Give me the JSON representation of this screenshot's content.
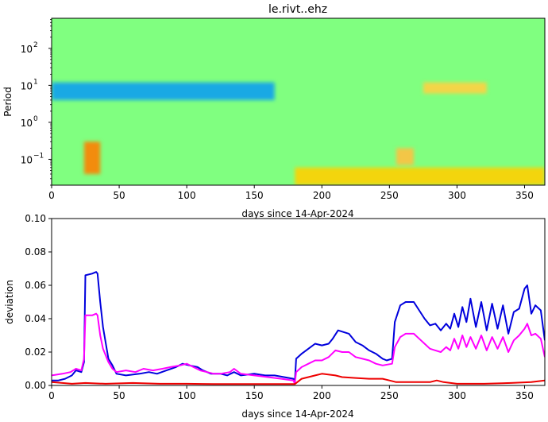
{
  "chart_data": [
    {
      "type": "heatmap",
      "title": "le.rivt..ehz",
      "xlabel": "days since 14-Apr-2024",
      "ylabel": "Period",
      "xlim": [
        0,
        365
      ],
      "xticks": [
        0,
        50,
        100,
        150,
        200,
        250,
        300,
        350
      ],
      "ylim": [
        0.02,
        650
      ],
      "yscale": "log",
      "yticks": [
        0.1,
        1,
        10,
        100
      ],
      "ytick_labels": [
        "10",
        "10",
        "10",
        "10"
      ],
      "ytick_exponents": [
        "−1",
        "0",
        "1",
        "2"
      ],
      "colormap": "jet",
      "background_color": "#80ff80",
      "features": [
        {
          "name": "microseism band",
          "x_range": [
            0,
            165
          ],
          "period_range": [
            4,
            12
          ],
          "color": "#0aa0f0"
        },
        {
          "name": "early short-period high",
          "x_range": [
            24,
            36
          ],
          "period_range": [
            0.04,
            0.3
          ],
          "color": "#ff8000"
        },
        {
          "name": "mid short-period",
          "x_range": [
            255,
            268
          ],
          "period_range": [
            0.07,
            0.2
          ],
          "color": "#ffc040"
        },
        {
          "name": "late short-period elevated",
          "x_range": [
            180,
            365
          ],
          "period_range": [
            0.02,
            0.06
          ],
          "color": "#ffd000"
        },
        {
          "name": "late period-10 band",
          "x_range": [
            275,
            322
          ],
          "period_range": [
            6,
            12
          ],
          "color": "#ffd040"
        }
      ]
    },
    {
      "type": "line",
      "title": "",
      "xlabel": "days since 14-Apr-2024",
      "ylabel": "deviation",
      "xlim": [
        0,
        365
      ],
      "ylim": [
        0,
        0.1
      ],
      "xticks": [
        0,
        50,
        100,
        150,
        200,
        250,
        300,
        350
      ],
      "yticks": [
        0.0,
        0.02,
        0.04,
        0.06,
        0.08,
        0.1
      ],
      "ytick_labels": [
        "0.00",
        "0.02",
        "0.04",
        "0.06",
        "0.08",
        "0.10"
      ],
      "series": [
        {
          "color": "#0000dd",
          "points": [
            [
              0,
              0.003
            ],
            [
              5,
              0.003
            ],
            [
              10,
              0.004
            ],
            [
              15,
              0.006
            ],
            [
              18,
              0.009
            ],
            [
              22,
              0.008
            ],
            [
              24,
              0.014
            ],
            [
              25,
              0.066
            ],
            [
              30,
              0.067
            ],
            [
              33,
              0.068
            ],
            [
              34,
              0.067
            ],
            [
              36,
              0.05
            ],
            [
              38,
              0.035
            ],
            [
              42,
              0.016
            ],
            [
              45,
              0.012
            ],
            [
              48,
              0.007
            ],
            [
              55,
              0.006
            ],
            [
              65,
              0.007
            ],
            [
              72,
              0.008
            ],
            [
              78,
              0.007
            ],
            [
              85,
              0.009
            ],
            [
              92,
              0.011
            ],
            [
              97,
              0.013
            ],
            [
              102,
              0.012
            ],
            [
              108,
              0.011
            ],
            [
              112,
              0.009
            ],
            [
              118,
              0.007
            ],
            [
              125,
              0.007
            ],
            [
              130,
              0.006
            ],
            [
              135,
              0.008
            ],
            [
              140,
              0.006
            ],
            [
              150,
              0.007
            ],
            [
              158,
              0.006
            ],
            [
              165,
              0.006
            ],
            [
              172,
              0.005
            ],
            [
              179,
              0.004
            ],
            [
              180,
              0.002
            ],
            [
              181,
              0.016
            ],
            [
              185,
              0.019
            ],
            [
              190,
              0.022
            ],
            [
              195,
              0.025
            ],
            [
              200,
              0.024
            ],
            [
              205,
              0.025
            ],
            [
              208,
              0.028
            ],
            [
              212,
              0.033
            ],
            [
              216,
              0.032
            ],
            [
              220,
              0.031
            ],
            [
              225,
              0.026
            ],
            [
              230,
              0.024
            ],
            [
              235,
              0.021
            ],
            [
              240,
              0.019
            ],
            [
              245,
              0.016
            ],
            [
              248,
              0.015
            ],
            [
              252,
              0.016
            ],
            [
              254,
              0.038
            ],
            [
              258,
              0.048
            ],
            [
              262,
              0.05
            ],
            [
              268,
              0.05
            ],
            [
              272,
              0.045
            ],
            [
              276,
              0.04
            ],
            [
              280,
              0.036
            ],
            [
              284,
              0.037
            ],
            [
              288,
              0.033
            ],
            [
              292,
              0.037
            ],
            [
              295,
              0.034
            ],
            [
              298,
              0.043
            ],
            [
              301,
              0.035
            ],
            [
              304,
              0.047
            ],
            [
              307,
              0.038
            ],
            [
              310,
              0.052
            ],
            [
              314,
              0.035
            ],
            [
              318,
              0.05
            ],
            [
              322,
              0.033
            ],
            [
              326,
              0.049
            ],
            [
              330,
              0.034
            ],
            [
              334,
              0.048
            ],
            [
              338,
              0.031
            ],
            [
              342,
              0.044
            ],
            [
              346,
              0.046
            ],
            [
              350,
              0.058
            ],
            [
              352,
              0.06
            ],
            [
              355,
              0.043
            ],
            [
              358,
              0.048
            ],
            [
              362,
              0.045
            ],
            [
              365,
              0.027
            ]
          ]
        },
        {
          "color": "#ff00ff",
          "points": [
            [
              0,
              0.006
            ],
            [
              8,
              0.007
            ],
            [
              14,
              0.008
            ],
            [
              18,
              0.01
            ],
            [
              22,
              0.009
            ],
            [
              24,
              0.016
            ],
            [
              25,
              0.042
            ],
            [
              30,
              0.042
            ],
            [
              33,
              0.043
            ],
            [
              34,
              0.042
            ],
            [
              36,
              0.03
            ],
            [
              38,
              0.022
            ],
            [
              42,
              0.014
            ],
            [
              45,
              0.01
            ],
            [
              48,
              0.008
            ],
            [
              55,
              0.009
            ],
            [
              62,
              0.008
            ],
            [
              68,
              0.01
            ],
            [
              75,
              0.009
            ],
            [
              82,
              0.01
            ],
            [
              88,
              0.011
            ],
            [
              95,
              0.012
            ],
            [
              100,
              0.013
            ],
            [
              105,
              0.011
            ],
            [
              110,
              0.009
            ],
            [
              115,
              0.008
            ],
            [
              120,
              0.007
            ],
            [
              125,
              0.007
            ],
            [
              132,
              0.008
            ],
            [
              135,
              0.01
            ],
            [
              140,
              0.007
            ],
            [
              150,
              0.006
            ],
            [
              160,
              0.005
            ],
            [
              170,
              0.004
            ],
            [
              179,
              0.003
            ],
            [
              180,
              0.001
            ],
            [
              181,
              0.008
            ],
            [
              185,
              0.011
            ],
            [
              190,
              0.013
            ],
            [
              195,
              0.015
            ],
            [
              200,
              0.015
            ],
            [
              205,
              0.017
            ],
            [
              210,
              0.021
            ],
            [
              215,
              0.02
            ],
            [
              220,
              0.02
            ],
            [
              225,
              0.017
            ],
            [
              230,
              0.016
            ],
            [
              235,
              0.015
            ],
            [
              240,
              0.013
            ],
            [
              245,
              0.012
            ],
            [
              252,
              0.013
            ],
            [
              254,
              0.023
            ],
            [
              258,
              0.029
            ],
            [
              262,
              0.031
            ],
            [
              268,
              0.031
            ],
            [
              272,
              0.028
            ],
            [
              276,
              0.025
            ],
            [
              280,
              0.022
            ],
            [
              284,
              0.021
            ],
            [
              288,
              0.02
            ],
            [
              292,
              0.023
            ],
            [
              295,
              0.021
            ],
            [
              298,
              0.028
            ],
            [
              301,
              0.022
            ],
            [
              304,
              0.03
            ],
            [
              307,
              0.023
            ],
            [
              310,
              0.029
            ],
            [
              314,
              0.022
            ],
            [
              318,
              0.03
            ],
            [
              322,
              0.021
            ],
            [
              326,
              0.029
            ],
            [
              330,
              0.022
            ],
            [
              334,
              0.029
            ],
            [
              338,
              0.02
            ],
            [
              342,
              0.027
            ],
            [
              346,
              0.03
            ],
            [
              350,
              0.034
            ],
            [
              352,
              0.037
            ],
            [
              355,
              0.03
            ],
            [
              358,
              0.031
            ],
            [
              362,
              0.028
            ],
            [
              365,
              0.017
            ]
          ]
        },
        {
          "color": "#ee0000",
          "points": [
            [
              0,
              0.002
            ],
            [
              15,
              0.001
            ],
            [
              25,
              0.0015
            ],
            [
              40,
              0.001
            ],
            [
              60,
              0.0015
            ],
            [
              80,
              0.001
            ],
            [
              100,
              0.001
            ],
            [
              120,
              0.0008
            ],
            [
              140,
              0.0008
            ],
            [
              160,
              0.0008
            ],
            [
              180,
              0.0008
            ],
            [
              185,
              0.004
            ],
            [
              195,
              0.006
            ],
            [
              200,
              0.007
            ],
            [
              210,
              0.006
            ],
            [
              215,
              0.005
            ],
            [
              225,
              0.0045
            ],
            [
              235,
              0.004
            ],
            [
              245,
              0.004
            ],
            [
              250,
              0.003
            ],
            [
              255,
              0.002
            ],
            [
              265,
              0.002
            ],
            [
              280,
              0.002
            ],
            [
              285,
              0.003
            ],
            [
              290,
              0.002
            ],
            [
              300,
              0.001
            ],
            [
              320,
              0.001
            ],
            [
              340,
              0.0015
            ],
            [
              355,
              0.002
            ],
            [
              365,
              0.003
            ]
          ]
        }
      ]
    }
  ]
}
